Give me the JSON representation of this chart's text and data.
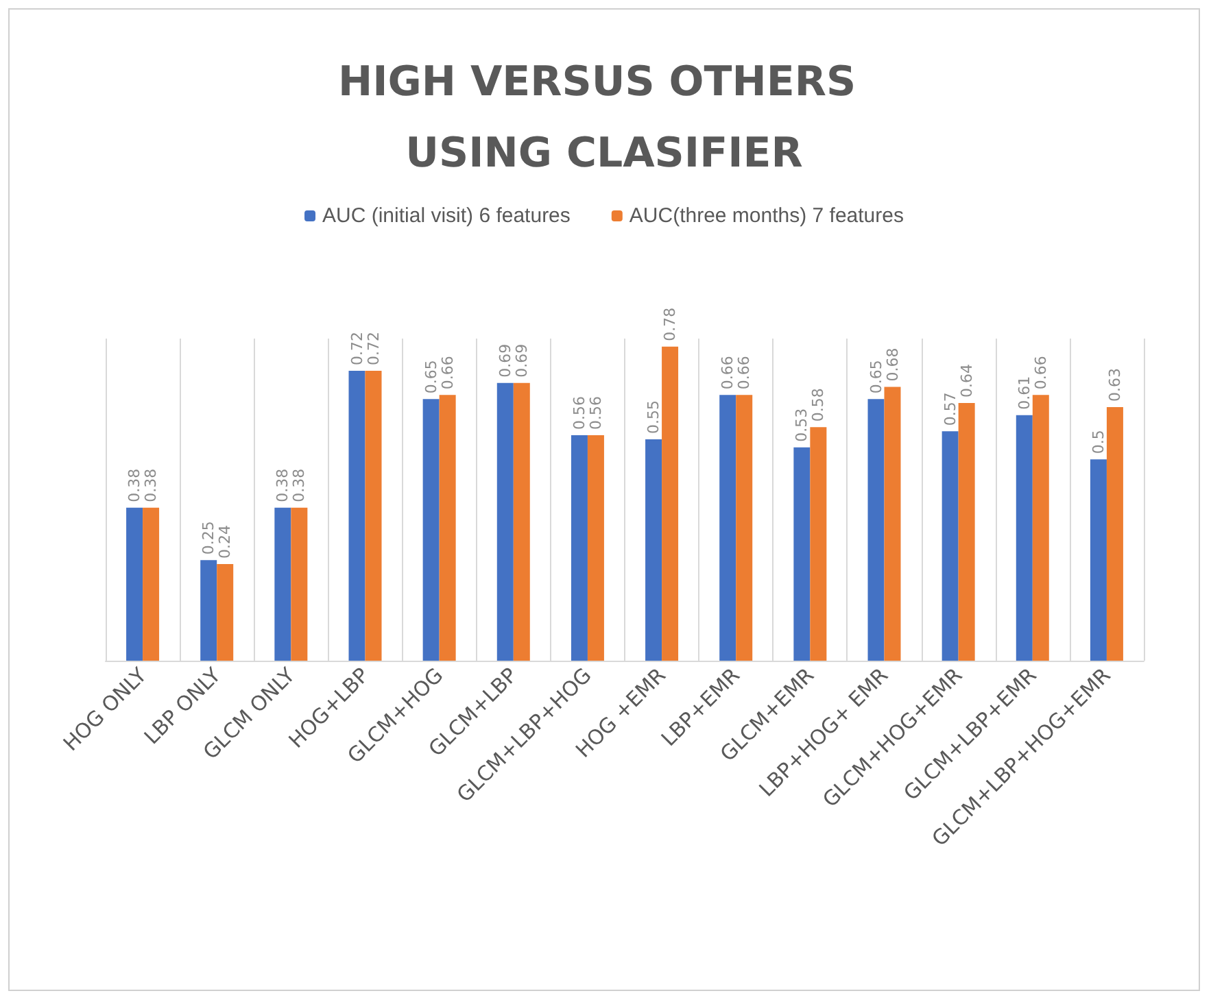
{
  "chart_data": {
    "type": "bar",
    "title": "HIGH VERSUS OTHERS USING CLASIFIER",
    "categories": [
      "HOG ONLY",
      "LBP ONLY",
      "GLCM ONLY",
      "HOG+LBP",
      "GLCM+HOG",
      "GLCM+LBP",
      "GLCM+LBP+HOG",
      "HOG +EMR",
      "LBP+EMR",
      "GLCM+EMR",
      "LBP+HOG+ EMR",
      "GLCM+HOG+EMR",
      "GLCM+LBP+EMR",
      "GLCM+LBP+HOG+EMR"
    ],
    "series": [
      {
        "name": "AUC (initial visit) 6 features",
        "color": "#4472c4",
        "values": [
          0.38,
          0.25,
          0.38,
          0.72,
          0.65,
          0.69,
          0.56,
          0.55,
          0.66,
          0.53,
          0.65,
          0.57,
          0.61,
          0.5
        ]
      },
      {
        "name": "AUC(three months) 7 features",
        "color": "#ed7d31",
        "values": [
          0.38,
          0.24,
          0.38,
          0.72,
          0.66,
          0.69,
          0.56,
          0.78,
          0.66,
          0.58,
          0.68,
          0.64,
          0.66,
          0.63
        ]
      }
    ],
    "data_labels": true,
    "grid": "x",
    "legend": "top"
  }
}
